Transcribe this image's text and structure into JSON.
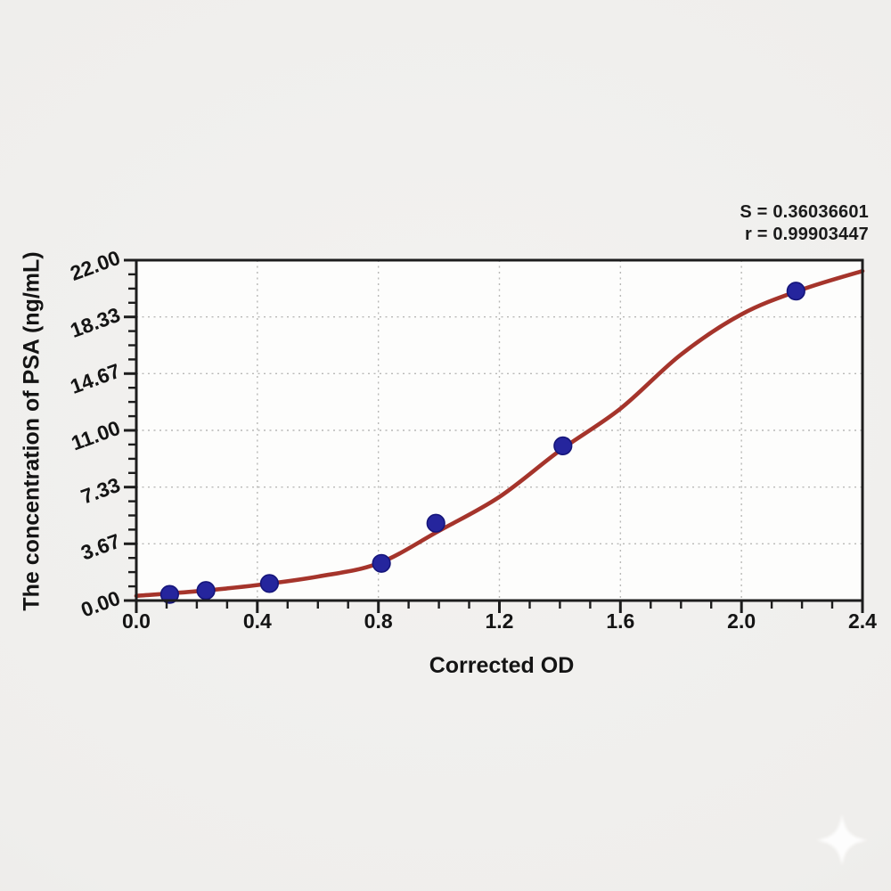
{
  "chart_data": {
    "type": "scatter",
    "title": "",
    "xlabel": "Corrected OD",
    "ylabel": "The concentration of PSA (ng/mL)",
    "xlim": [
      0,
      2.4
    ],
    "ylim": [
      0,
      22
    ],
    "x_major_ticks": [
      0,
      0.4,
      0.8,
      1.2,
      1.6,
      2.0,
      2.4
    ],
    "x_tick_labels": [
      "0.0",
      "0.4",
      "0.8",
      "1.2",
      "1.6",
      "2.0",
      "2.4"
    ],
    "y_major_ticks": [
      0,
      3.67,
      7.33,
      11,
      14.67,
      18.33,
      22
    ],
    "y_tick_labels": [
      "0.00",
      "3.67",
      "7.33",
      "11.00",
      "14.67",
      "18.33",
      "22.00"
    ],
    "minor_tick_divisions": 4,
    "grid": "dotted gridlines at major ticks, full frame box, ticks outside left and bottom",
    "legend": "none",
    "annotations": {
      "s_line": "S = 0.36036601",
      "r_line": "r = 0.99903447",
      "S": "0.36036601",
      "r": "0.99903447"
    },
    "series": [
      {
        "name": "standard-points",
        "type": "scatter",
        "marker": "filled-circle",
        "points": [
          [
            0.11,
            0.4
          ],
          [
            0.23,
            0.65
          ],
          [
            0.44,
            1.1
          ],
          [
            0.81,
            2.4
          ],
          [
            0.99,
            5.0
          ],
          [
            1.41,
            10.0
          ],
          [
            2.18,
            20.0
          ]
        ]
      },
      {
        "name": "fitted-4pl-curve",
        "type": "line",
        "points": [
          [
            0,
            0.3
          ],
          [
            0.2,
            0.6
          ],
          [
            0.4,
            1.0
          ],
          [
            0.6,
            1.55
          ],
          [
            0.8,
            2.4
          ],
          [
            1.0,
            4.5
          ],
          [
            1.2,
            6.7
          ],
          [
            1.4,
            9.7
          ],
          [
            1.6,
            12.4
          ],
          [
            1.8,
            15.9
          ],
          [
            2.0,
            18.5
          ],
          [
            2.2,
            20.1
          ],
          [
            2.4,
            21.3
          ]
        ]
      }
    ],
    "colors": {
      "curve": "#a5342b",
      "marker_fill": "#25259d",
      "marker_edge": "#15157a",
      "axis": "#1d1d1d",
      "grid": "#b8b8b6",
      "plot_bg": "#fdfdfc",
      "page_bg": "#efeeec",
      "text": "#141414",
      "sparkle": "#ffffff"
    }
  }
}
